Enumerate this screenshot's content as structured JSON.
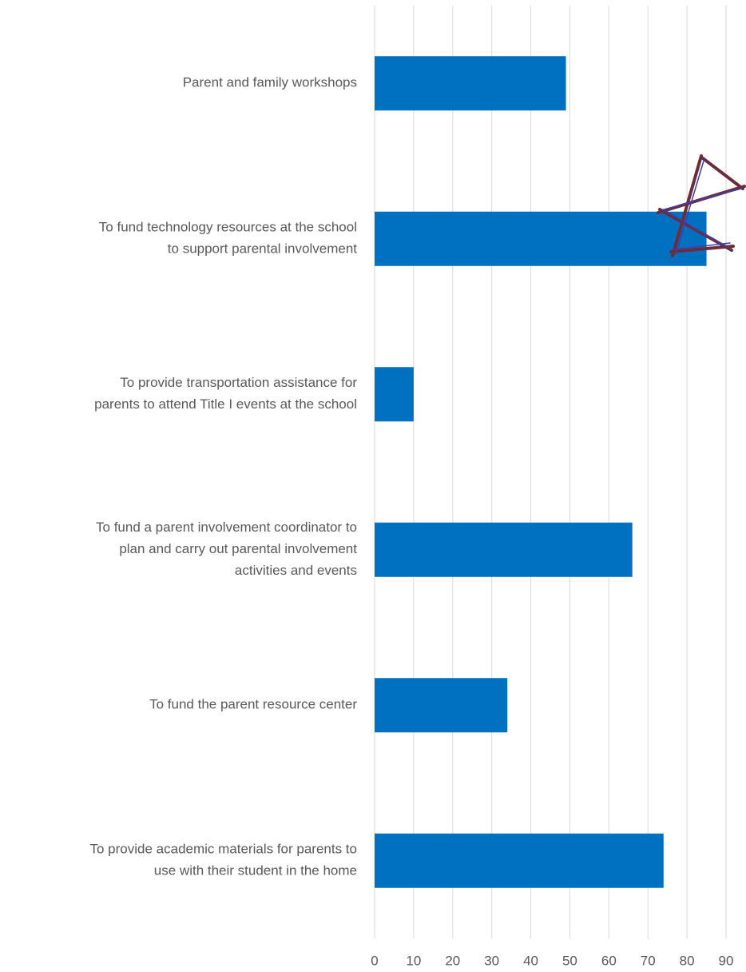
{
  "chart_data": {
    "type": "bar",
    "orientation": "horizontal",
    "categories": [
      [
        "Parent and family workshops"
      ],
      [
        "To fund technology resources at the school",
        "to support parental involvement"
      ],
      [
        "To provide transportation assistance for",
        "parents to attend Title I events at the school"
      ],
      [
        "To fund a parent involvement coordinator to",
        "plan and carry out parental involvement",
        "activities and events"
      ],
      [
        "To fund the parent resource center"
      ],
      [
        "To provide academic materials for parents to",
        "use with their student in the home"
      ]
    ],
    "values": [
      49,
      85,
      10,
      66,
      34,
      74
    ],
    "color": "#0070c0",
    "xlim": [
      0,
      90
    ],
    "xticks": [
      0,
      10,
      20,
      30,
      40,
      50,
      60,
      70,
      80,
      90
    ],
    "grid": true
  }
}
